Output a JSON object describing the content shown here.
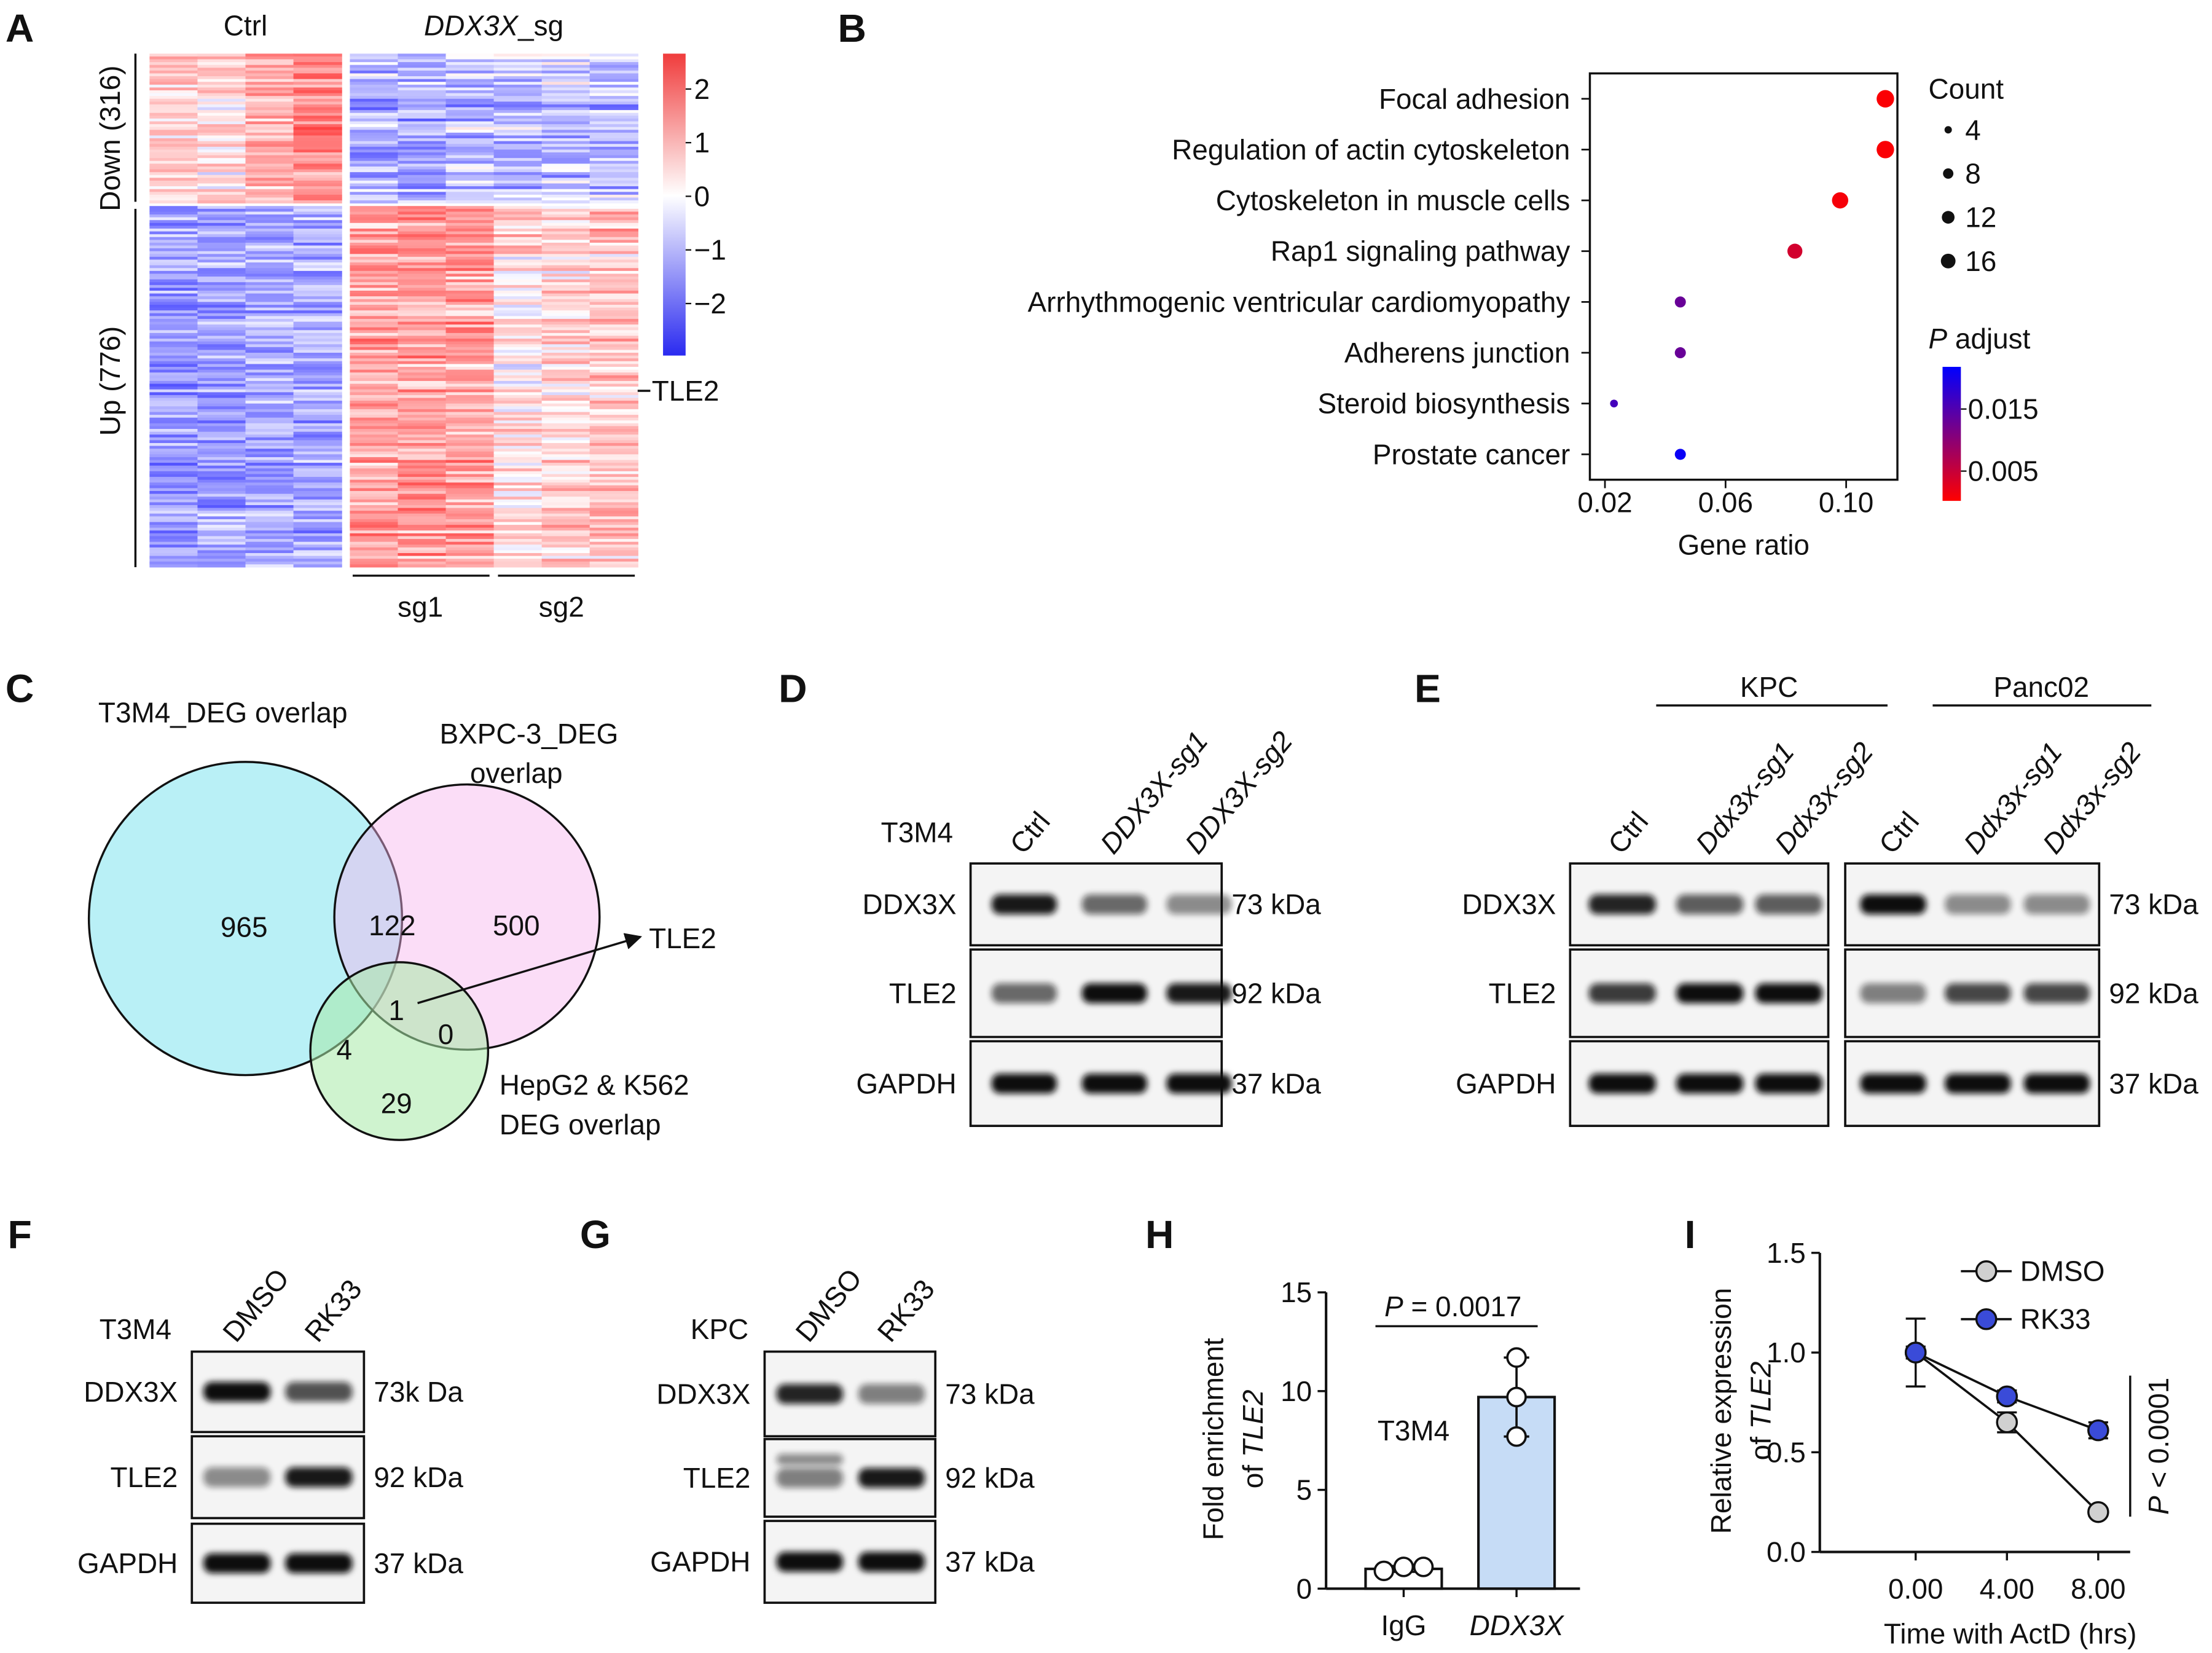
{
  "panel_labels": [
    "A",
    "B",
    "C",
    "D",
    "E",
    "F",
    "G",
    "H",
    "I"
  ],
  "heatmap": {
    "ctrl_label": "Ctrl",
    "sg_label": [
      "DDX3X",
      "_sg"
    ],
    "row_groups": [
      "Down (316)",
      "Up (776)"
    ],
    "subgroups": [
      "sg1",
      "sg2"
    ],
    "gene_label": "TLE2",
    "colorbar": {
      "clim": [
        -2.97,
        2.66
      ],
      "ticks": [
        2,
        1,
        0,
        {
          "value": -1,
          "label": "−1"
        },
        {
          "value": -2,
          "label": "−2"
        }
      ]
    }
  },
  "chart_data": [
    {
      "type": "dot",
      "categories": [
        "Focal adhesion",
        "Regulation of actin cytoskeleton",
        "Cytoskeleton in muscle cells",
        "Rap1 signaling pathway",
        "Arrhythmogenic ventricular cardiomyopathy",
        "Adherens junction",
        "Steroid biosynthesis",
        "Prostate cancer"
      ],
      "x": [
        0.113,
        0.113,
        0.098,
        0.083,
        0.045,
        0.045,
        0.023,
        0.045
      ],
      "sizes": [
        15,
        15,
        13,
        11,
        6,
        6,
        3,
        6
      ],
      "padj": [
        0.0005,
        0.0006,
        0.001,
        0.004,
        0.013,
        0.013,
        0.016,
        0.021
      ],
      "xlim": [
        0.015,
        0.117
      ],
      "xticks": [
        0.02,
        0.06,
        {
          "value": 0.1,
          "label": "0.10"
        }
      ],
      "xlabel": "Gene ratio",
      "size_legend": {
        "title": "Count",
        "values": [
          4,
          8,
          12,
          16
        ]
      },
      "color_legend": {
        "title": [
          "P",
          " adjust"
        ],
        "clim": [
          0.0002,
          0.0218
        ],
        "ticks": [
          0.015,
          0.005
        ],
        "colors": [
          "#ff0000",
          "#0000ff"
        ]
      }
    },
    {
      "type": "bar",
      "categories": [
        "IgG",
        "DDX3X"
      ],
      "values": [
        1.0,
        9.7
      ],
      "errors": [
        0.15,
        2.0
      ],
      "points": [
        [
          0.9,
          1.1,
          1.1
        ],
        [
          7.7,
          9.7,
          11.7
        ]
      ],
      "colors": [
        "#ffffff",
        "#c6dcf6"
      ],
      "ylim": [
        0,
        15
      ],
      "yticks": [
        0,
        5,
        10,
        15
      ],
      "ylabel": [
        "Fold enrichment",
        "of ",
        "TLE2"
      ],
      "annotations": {
        "p_value": [
          "P",
          " = 0.0017"
        ],
        "cell_line": "T3M4"
      }
    },
    {
      "type": "line",
      "x": [
        0,
        4,
        8
      ],
      "xlim": [
        -4.2,
        9.4
      ],
      "xticks": [
        {
          "value": 0,
          "label": "0.00"
        },
        {
          "value": 4,
          "label": "4.00"
        },
        {
          "value": 8,
          "label": "8.00"
        }
      ],
      "series": [
        {
          "name": "DMSO",
          "color": "#d0d0d0",
          "values": [
            1.0,
            0.65,
            0.2
          ],
          "errors": [
            0.17,
            0.05,
            0.02
          ]
        },
        {
          "name": "RK33",
          "color": "#3a4bd8",
          "values": [
            1.0,
            0.78,
            0.61
          ],
          "errors": [
            0.03,
            0.03,
            0.04
          ]
        }
      ],
      "ylim": [
        0,
        1.5
      ],
      "yticks": [
        {
          "value": 0,
          "label": "0.0"
        },
        {
          "value": 0.5,
          "label": "0.5"
        },
        {
          "value": 1,
          "label": "1.0"
        },
        {
          "value": 1.5,
          "label": "1.5"
        }
      ],
      "xlabel": "Time with ActD (hrs)",
      "ylabel": [
        "Relative expression",
        "of ",
        "TLE2"
      ],
      "annotation": [
        "P",
        " < 0.0001"
      ]
    }
  ],
  "venn": {
    "sets": [
      "T3M4_DEG overlap",
      [
        "BXPC-3_DEG",
        "overlap"
      ],
      [
        "HepG2 & K562",
        "DEG overlap"
      ]
    ],
    "regions": [
      965,
      122,
      500,
      1,
      4,
      0,
      29
    ],
    "callout": "TLE2"
  },
  "blots": [
    {
      "cell_line": "T3M4",
      "lanes": [
        "Ctrl",
        "DDX3X-sg1",
        "DDX3X-sg2"
      ],
      "proteins": [
        "DDX3X",
        "TLE2",
        "GAPDH"
      ],
      "sizes": [
        "73 kDa",
        "92 kDa",
        "37 kDa"
      ]
    },
    {
      "groups": [
        "KPC",
        "Panc02"
      ],
      "lanes": [
        "Ctrl",
        "Ddx3x-sg1",
        "Ddx3x-sg2",
        "Ctrl",
        "Ddx3x-sg1",
        "Ddx3x-sg2"
      ],
      "proteins": [
        "DDX3X",
        "TLE2",
        "GAPDH"
      ],
      "sizes": [
        "73 kDa",
        "92 kDa",
        "37 kDa"
      ]
    },
    {
      "cell_line": "T3M4",
      "lanes": [
        "DMSO",
        "RK33"
      ],
      "proteins": [
        "DDX3X",
        "TLE2",
        "GAPDH"
      ],
      "sizes": [
        "73k Da",
        "92 kDa",
        "37 kDa"
      ]
    },
    {
      "cell_line": "KPC",
      "lanes": [
        "DMSO",
        "RK33"
      ],
      "proteins": [
        "DDX3X",
        "TLE2",
        "GAPDH"
      ],
      "sizes": [
        "73 kDa",
        "92 kDa",
        "37 kDa"
      ]
    }
  ]
}
